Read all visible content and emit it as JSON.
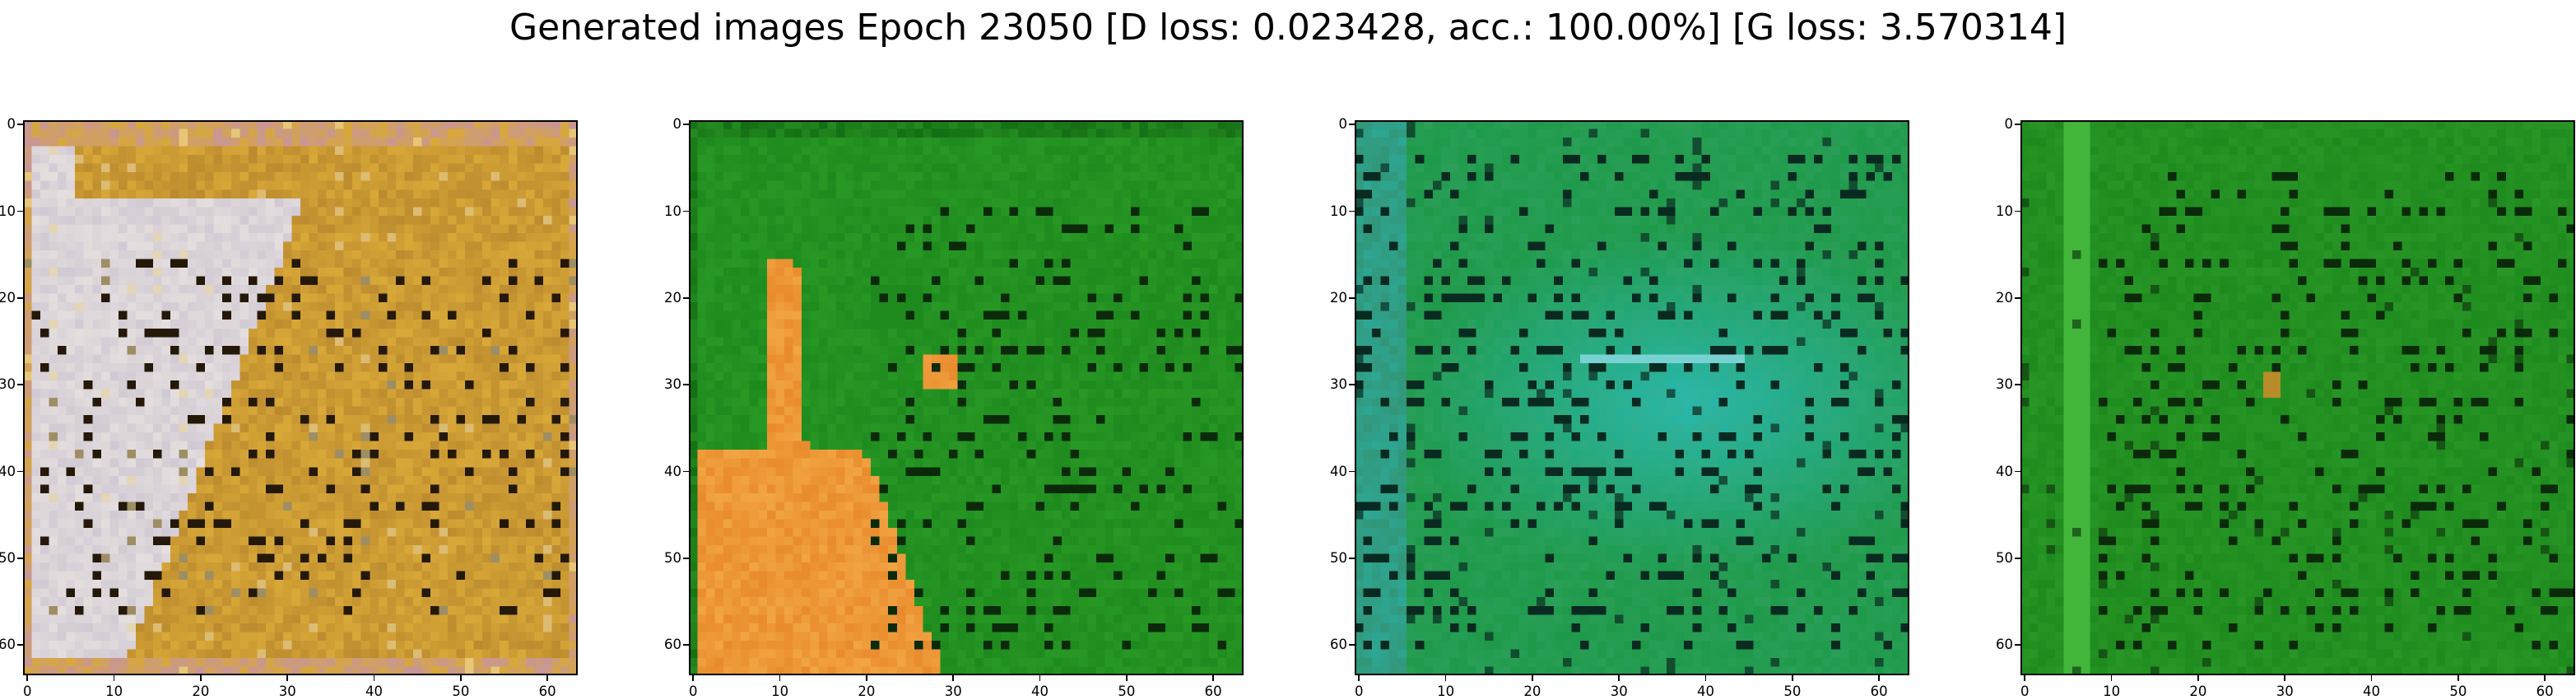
{
  "figure": {
    "title": "Generated images Epoch 23050 [D loss: 0.023428, acc.: 100.00%] [G loss: 3.570314]"
  },
  "axes": {
    "x_ticks": [
      "0",
      "10",
      "20",
      "30",
      "40",
      "50",
      "60"
    ],
    "y_ticks": [
      "0",
      "10",
      "20",
      "30",
      "40",
      "50",
      "60"
    ],
    "extent": [
      -0.5,
      63.5
    ]
  },
  "panels": [
    {
      "id": "sample-1",
      "palette": "tan-white",
      "colors": {
        "base": "#d8a838",
        "light": "#e4dcdc",
        "dark": "#241808"
      }
    },
    {
      "id": "sample-2",
      "palette": "green-orange",
      "colors": {
        "base": "#1f8a1f",
        "accent": "#e98b2c",
        "dark": "#0a2a0a"
      }
    },
    {
      "id": "sample-3",
      "palette": "teal",
      "colors": {
        "base": "#1e9a4a",
        "accent": "#28b8b0",
        "dark": "#082a20"
      }
    },
    {
      "id": "sample-4",
      "palette": "green",
      "colors": {
        "base": "#1e8a1e",
        "accent": "#b88c28",
        "dark": "#0a2a0a"
      }
    }
  ]
}
